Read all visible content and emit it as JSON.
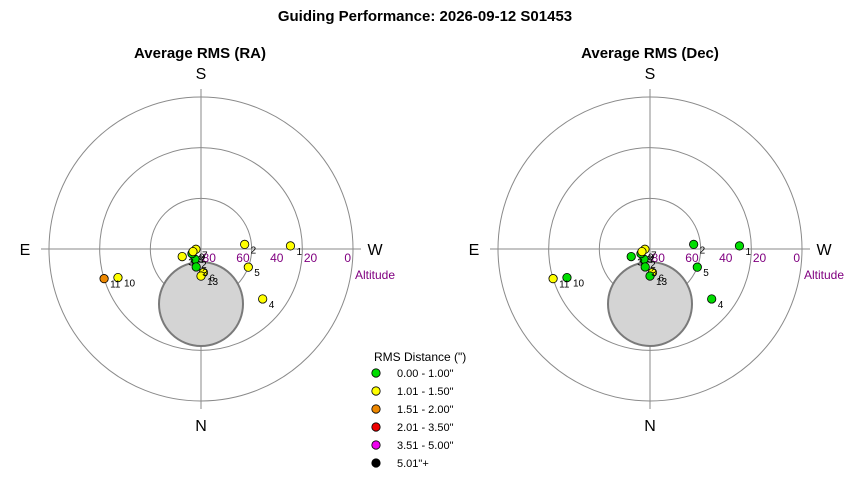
{
  "title": "Guiding Performance: 2026-09-12 S01453",
  "colors": {
    "ring": "#8a8a8a",
    "axis": "#8a8a8a",
    "altitude": "#800080",
    "moon_fill": "#d4d4d4",
    "moon_stroke": "#7a7a7a"
  },
  "directions": {
    "top": "S",
    "bottom": "N",
    "left": "E",
    "right": "W"
  },
  "altitude_label": "Altitude",
  "altitude_ticks": [
    {
      "label": "80",
      "alt": 80
    },
    {
      "label": "60",
      "alt": 60
    },
    {
      "label": "40",
      "alt": 40
    },
    {
      "label": "20",
      "alt": 20
    },
    {
      "label": "0",
      "alt": 0
    }
  ],
  "legend": {
    "title": "RMS Distance (\")",
    "items": [
      {
        "label": "0.00 - 1.00\"",
        "color": "#00dd00"
      },
      {
        "label": "1.01 - 1.50\"",
        "color": "#ffff00"
      },
      {
        "label": "1.51 - 2.00\"",
        "color": "#ee8800"
      },
      {
        "label": "2.01 - 3.50\"",
        "color": "#ee0000"
      },
      {
        "label": "3.51 - 5.00\"",
        "color": "#ee00ee"
      },
      {
        "label": "5.01\"+",
        "color": "#000000"
      }
    ]
  },
  "chart_data": [
    {
      "type": "scatter",
      "projection": "polar-altaz",
      "title": "Average RMS (RA)",
      "points": [
        {
          "label": "1",
          "az": 272,
          "alt": 37,
          "class": 1
        },
        {
          "label": "2",
          "az": 276,
          "alt": 64,
          "class": 1
        },
        {
          "label": "4",
          "az": 231,
          "alt": 43,
          "class": 1
        },
        {
          "label": "5",
          "az": 249,
          "alt": 60,
          "class": 1
        },
        {
          "label": "6",
          "az": 186,
          "alt": 76,
          "class": 1
        },
        {
          "label": "13",
          "az": 180,
          "alt": 74,
          "class": 1
        },
        {
          "label": "10",
          "az": 109,
          "alt": 38,
          "class": 1
        },
        {
          "label": "11",
          "az": 107,
          "alt": 30,
          "class": 2
        },
        {
          "label": "2",
          "az": 150,
          "alt": 83,
          "class": 0
        },
        {
          "label": "3",
          "az": 165,
          "alt": 79,
          "class": 0
        },
        {
          "label": "3",
          "az": 112,
          "alt": 78,
          "class": 1
        },
        {
          "label": "7",
          "az": 93,
          "alt": 87,
          "class": 1
        },
        {
          "label": "8",
          "az": 117,
          "alt": 84,
          "class": 0
        },
        {
          "label": "9",
          "az": 108,
          "alt": 85,
          "class": 1
        }
      ]
    },
    {
      "type": "scatter",
      "projection": "polar-altaz",
      "title": "Average RMS (Dec)",
      "points": [
        {
          "label": "1",
          "az": 272,
          "alt": 37,
          "class": 0
        },
        {
          "label": "2",
          "az": 276,
          "alt": 64,
          "class": 0
        },
        {
          "label": "4",
          "az": 231,
          "alt": 43,
          "class": 0
        },
        {
          "label": "5",
          "az": 249,
          "alt": 60,
          "class": 0
        },
        {
          "label": "6",
          "az": 186,
          "alt": 76,
          "class": 1
        },
        {
          "label": "13",
          "az": 180,
          "alt": 74,
          "class": 0
        },
        {
          "label": "10",
          "az": 109,
          "alt": 38,
          "class": 0
        },
        {
          "label": "11",
          "az": 107,
          "alt": 30,
          "class": 1
        },
        {
          "label": "2",
          "az": 150,
          "alt": 83,
          "class": 0
        },
        {
          "label": "3",
          "az": 165,
          "alt": 79,
          "class": 0
        },
        {
          "label": "3",
          "az": 112,
          "alt": 78,
          "class": 0
        },
        {
          "label": "7",
          "az": 93,
          "alt": 87,
          "class": 1
        },
        {
          "label": "8",
          "az": 117,
          "alt": 84,
          "class": 0
        },
        {
          "label": "9",
          "az": 108,
          "alt": 85,
          "class": 1
        }
      ]
    }
  ]
}
